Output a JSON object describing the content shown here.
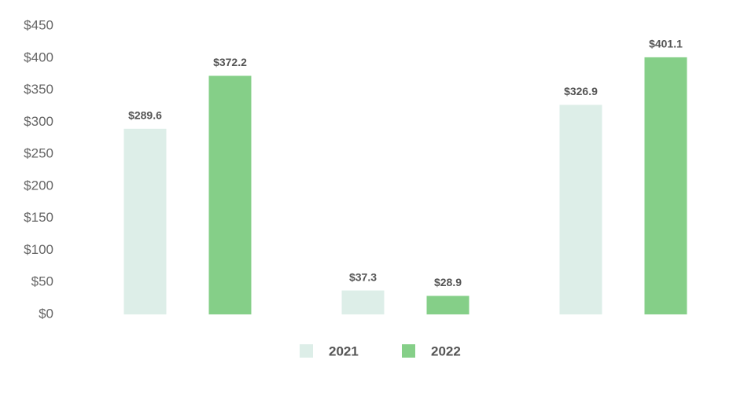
{
  "chart_data": {
    "type": "bar",
    "categories": [
      null,
      null,
      null
    ],
    "series": [
      {
        "name": "2021",
        "color": "#ddeee8",
        "values": [
          289.6,
          37.3,
          326.9
        ],
        "value_labels": [
          "$289.6",
          "$37.3",
          "$326.9"
        ]
      },
      {
        "name": "2022",
        "color": "#85cf88",
        "values": [
          372.2,
          28.9,
          401.1
        ],
        "value_labels": [
          "$372.2",
          "$28.9",
          "$401.1"
        ]
      }
    ],
    "ylim": [
      0,
      450
    ],
    "yticks": [
      {
        "value": 0,
        "label": "$0"
      },
      {
        "value": 50,
        "label": "$50"
      },
      {
        "value": 100,
        "label": "$100"
      },
      {
        "value": 150,
        "label": "$150"
      },
      {
        "value": 200,
        "label": "$200"
      },
      {
        "value": 250,
        "label": "$250"
      },
      {
        "value": 300,
        "label": "$300"
      },
      {
        "value": 350,
        "label": "$350"
      },
      {
        "value": 400,
        "label": "$400"
      },
      {
        "value": 450,
        "label": "$450"
      }
    ],
    "grid": false,
    "legend": "bottom"
  }
}
